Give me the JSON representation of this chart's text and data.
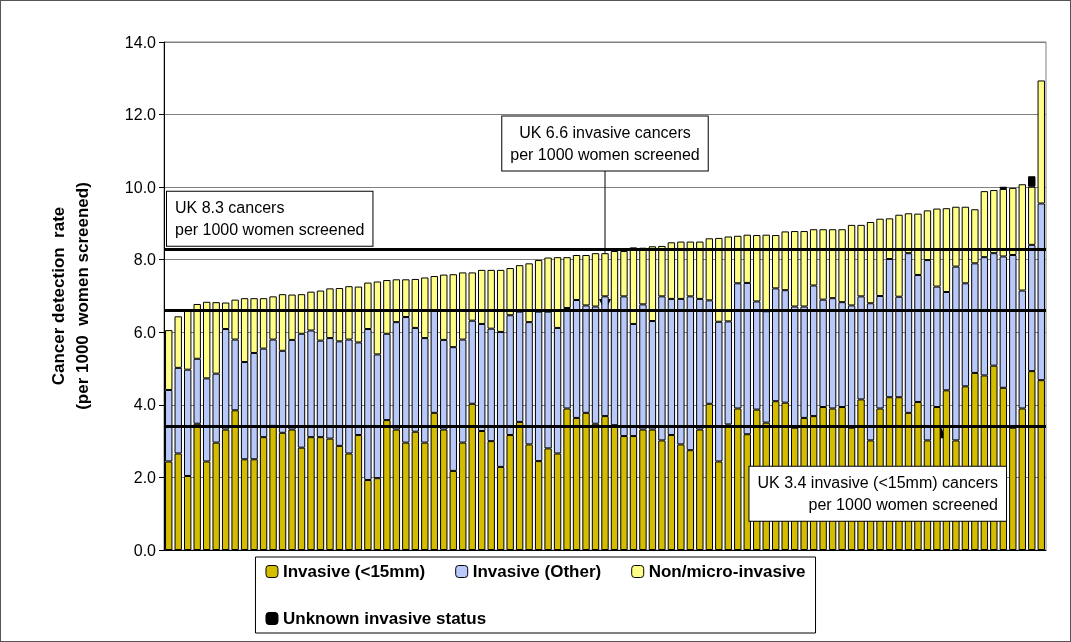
{
  "chart_data": {
    "type": "bar",
    "stacked": true,
    "ylabel": "Cancer detection  rate\n(per 1000  women screened)",
    "categories": [
      null,
      null,
      null,
      null,
      null,
      null,
      null,
      null,
      null,
      null,
      null,
      null,
      null,
      null,
      null,
      null,
      null,
      null,
      null,
      null,
      null,
      null,
      null,
      null,
      null,
      null,
      null,
      null,
      null,
      null,
      null,
      null,
      null,
      null,
      null,
      null,
      null,
      null,
      null,
      null,
      null,
      null,
      null,
      null,
      null,
      null,
      null,
      null,
      null,
      null,
      null,
      null,
      null,
      null,
      null,
      null,
      null,
      null,
      null,
      null,
      null,
      null,
      null,
      null,
      null,
      null,
      null,
      null,
      null,
      null,
      null,
      null,
      null,
      null,
      null,
      null,
      null,
      null,
      null,
      null,
      null,
      null,
      null,
      null,
      null,
      null,
      null,
      null,
      null,
      null,
      null,
      null,
      null
    ],
    "series": [
      {
        "name": "Invasive (<15mm)",
        "color": "#d4bc00",
        "values": [
          2.44,
          2.66,
          2.04,
          3.48,
          2.44,
          2.96,
          3.32,
          3.85,
          2.5,
          2.5,
          3.11,
          3.42,
          3.23,
          3.32,
          2.82,
          3.11,
          3.11,
          3.07,
          2.87,
          2.66,
          3.17,
          1.93,
          1.98,
          3.58,
          3.32,
          2.96,
          3.26,
          2.96,
          3.78,
          3.32,
          2.18,
          2.96,
          4.03,
          3.28,
          3.0,
          2.29,
          3.17,
          3.53,
          2.91,
          2.45,
          2.8,
          2.66,
          3.9,
          3.64,
          3.78,
          3.48,
          3.69,
          3.44,
          3.14,
          3.14,
          3.32,
          3.32,
          3.02,
          3.17,
          2.91,
          2.75,
          3.32,
          4.03,
          2.44,
          3.46,
          3.9,
          3.19,
          3.87,
          3.51,
          4.1,
          4.06,
          3.37,
          3.64,
          3.69,
          3.94,
          3.9,
          3.94,
          3.37,
          4.15,
          3.02,
          3.9,
          4.21,
          4.21,
          3.78,
          4.08,
          3.02,
          3.94,
          4.4,
          3.02,
          4.51,
          4.88,
          4.81,
          5.08,
          4.47,
          3.37,
          3.9,
          4.93,
          4.68
        ]
      },
      {
        "name": "Invasive (Other)",
        "color": "#b8c8f8",
        "values": [
          1.97,
          2.36,
          2.93,
          1.79,
          2.29,
          1.9,
          2.77,
          1.95,
          2.68,
          2.93,
          2.44,
          2.38,
          2.26,
          2.47,
          3.14,
          2.94,
          2.66,
          2.77,
          2.88,
          3.14,
          2.55,
          4.16,
          3.41,
          2.38,
          2.96,
          3.46,
          2.86,
          2.88,
          2.82,
          2.47,
          3.41,
          2.84,
          2.29,
          2.95,
          3.1,
          3.72,
          3.3,
          3.04,
          3.37,
          4.12,
          3.77,
          3.46,
          2.77,
          3.25,
          2.96,
          3.23,
          3.3,
          3.15,
          3.85,
          3.09,
          3.45,
          2.99,
          3.97,
          3.75,
          4.01,
          4.24,
          3.6,
          2.85,
          3.85,
          2.84,
          3.45,
          4.17,
          2.98,
          3.07,
          3.11,
          3.1,
          3.34,
          3.07,
          3.6,
          2.96,
          3.04,
          2.89,
          3.37,
          2.84,
          3.78,
          3.1,
          3.81,
          2.77,
          4.4,
          3.5,
          4.97,
          3.32,
          2.71,
          4.79,
          2.84,
          3.02,
          3.26,
          3.1,
          3.62,
          4.76,
          3.25,
          3.48,
          4.87
        ]
      },
      {
        "name": "Non/micro-invasive",
        "color": "#ffff88",
        "values": [
          1.65,
          1.42,
          1.65,
          1.51,
          2.11,
          1.97,
          0.73,
          1.1,
          1.76,
          1.51,
          1.39,
          1.19,
          1.56,
          1.25,
          1.09,
          1.07,
          1.38,
          1.37,
          1.47,
          1.47,
          1.54,
          1.28,
          2.01,
          1.48,
          1.18,
          1.04,
          1.35,
          1.67,
          0.95,
          1.8,
          2.01,
          1.85,
          1.33,
          1.49,
          1.62,
          1.71,
          1.3,
          1.28,
          1.62,
          1.42,
          1.49,
          1.95,
          1.4,
          1.24,
          1.39,
          1.47,
          1.19,
          1.65,
          1.25,
          2.11,
          1.56,
          2.06,
          1.39,
          1.56,
          1.58,
          1.51,
          1.58,
          1.71,
          2.31,
          2.34,
          1.31,
          1.33,
          1.83,
          2.11,
          1.47,
          1.62,
          2.08,
          2.08,
          1.55,
          1.94,
          1.9,
          2.01,
          2.22,
          1.97,
          2.24,
          2.13,
          1.12,
          2.26,
          1.1,
          1.69,
          1.37,
          2.15,
          2.31,
          1.65,
          2.11,
          1.49,
          1.82,
          1.74,
          1.86,
          1.85,
          2.93,
          1.6,
          3.39
        ]
      },
      {
        "name": "Unknown invasive status",
        "color": "#000000",
        "values": [
          null,
          null,
          null,
          null,
          null,
          null,
          null,
          null,
          null,
          null,
          null,
          null,
          null,
          null,
          null,
          null,
          null,
          null,
          null,
          null,
          null,
          null,
          null,
          null,
          null,
          null,
          null,
          null,
          null,
          null,
          null,
          null,
          null,
          null,
          null,
          null,
          null,
          null,
          null,
          null,
          null,
          null,
          null,
          null,
          null,
          null,
          null,
          null,
          null,
          null,
          null,
          null,
          null,
          null,
          null,
          null,
          null,
          null,
          null,
          null,
          null,
          null,
          null,
          null,
          null,
          null,
          null,
          null,
          null,
          null,
          null,
          null,
          null,
          null,
          null,
          null,
          null,
          null,
          null,
          null,
          null,
          null,
          null,
          null,
          null,
          null,
          null,
          null,
          0.06,
          null,
          null,
          0.29,
          null
        ]
      }
    ],
    "ylim": [
      0,
      14
    ],
    "yticks": [
      {
        "value": 0,
        "label": "0.0"
      },
      {
        "value": 2,
        "label": "2.0"
      },
      {
        "value": 4,
        "label": "4.0"
      },
      {
        "value": 6,
        "label": "6.0"
      },
      {
        "value": 8,
        "label": "8.0"
      },
      {
        "value": 10,
        "label": "10.0"
      },
      {
        "value": 12,
        "label": "12.0"
      },
      {
        "value": 14,
        "label": "14.0"
      }
    ],
    "ref_lines": [
      {
        "axis": "y",
        "value": 8.3,
        "label": "UK 8.3 cancers\nper 1000 women screened",
        "color": "#000000",
        "line_style": "solid"
      },
      {
        "axis": "y",
        "value": 6.6,
        "label": "UK 6.6 invasive cancers\nper 1000 women screened",
        "color": "#000000",
        "line_style": "solid"
      },
      {
        "axis": "y",
        "value": 3.4,
        "label": "UK 3.4 invasive (<15mm) cancers\nper 1000 women screened",
        "color": "#000000",
        "line_style": "solid"
      }
    ],
    "grid": "y",
    "legend": "bottom",
    "tick_labels": "y"
  }
}
